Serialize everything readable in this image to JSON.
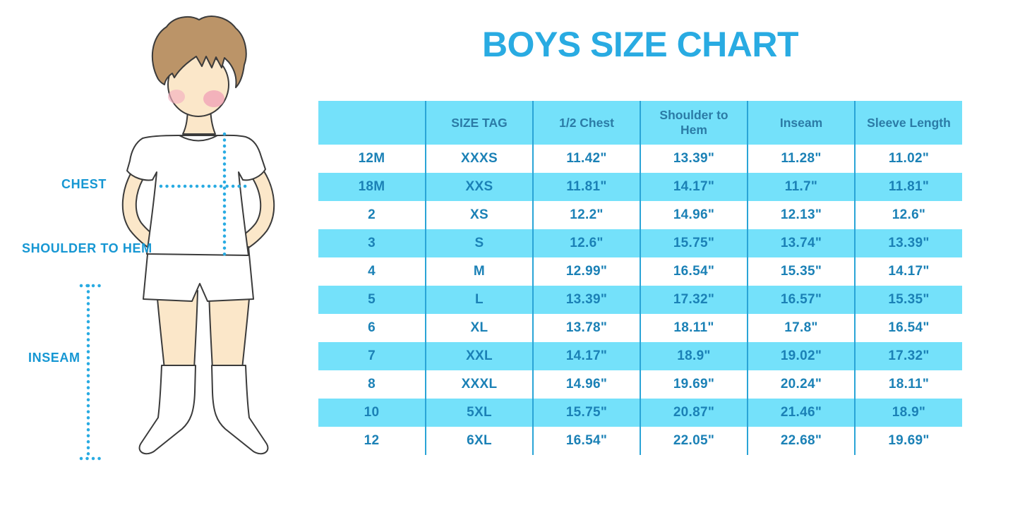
{
  "title": "BOYS SIZE CHART",
  "colors": {
    "title_blue": "#29ABE2",
    "label_blue": "#1697D3",
    "row_cyan": "#74E1FA",
    "grid_blue": "#2AA4D6",
    "header_blue": "#2B7BA6",
    "cell_blue": "#1B81B6",
    "dots_blue": "#29ABE2",
    "skin": "#FBE7C9",
    "hair": "#BB9468",
    "blush": "#F3AFC0",
    "outline": "#3B3B3B"
  },
  "figure": {
    "description": "outlined cartoon boy in white t-shirt, shorts and knee socks with dotted measurement guides",
    "labels": {
      "chest": "CHEST",
      "shoulder_to_hem": "SHOULDER TO HEM",
      "inseam": "INSEAM"
    }
  },
  "chart_data": {
    "type": "table",
    "title": "BOYS SIZE CHART",
    "columns": [
      "",
      "SIZE TAG",
      "1/2 Chest",
      "Shoulder to Hem",
      "Inseam",
      "Sleeve Length"
    ],
    "rows": [
      [
        "12M",
        "XXXS",
        "11.42\"",
        "13.39\"",
        "11.28\"",
        "11.02\""
      ],
      [
        "18M",
        "XXS",
        "11.81\"",
        "14.17\"",
        "11.7\"",
        "11.81\""
      ],
      [
        "2",
        "XS",
        "12.2\"",
        "14.96\"",
        "12.13\"",
        "12.6\""
      ],
      [
        "3",
        "S",
        "12.6\"",
        "15.75\"",
        "13.74\"",
        "13.39\""
      ],
      [
        "4",
        "M",
        "12.99\"",
        "16.54\"",
        "15.35\"",
        "14.17\""
      ],
      [
        "5",
        "L",
        "13.39\"",
        "17.32\"",
        "16.57\"",
        "15.35\""
      ],
      [
        "6",
        "XL",
        "13.78\"",
        "18.11\"",
        "17.8\"",
        "16.54\""
      ],
      [
        "7",
        "XXL",
        "14.17\"",
        "18.9\"",
        "19.02\"",
        "17.32\""
      ],
      [
        "8",
        "XXXL",
        "14.96\"",
        "19.69\"",
        "20.24\"",
        "18.11\""
      ],
      [
        "10",
        "5XL",
        "15.75\"",
        "20.87\"",
        "21.46\"",
        "18.9\""
      ],
      [
        "12",
        "6XL",
        "16.54\"",
        "22.05\"",
        "22.68\"",
        "19.69\""
      ]
    ],
    "layout": {
      "row_striping": "alternating white and cyan starting with white data row",
      "grid": "vertical column separators only",
      "units": "inches"
    }
  }
}
